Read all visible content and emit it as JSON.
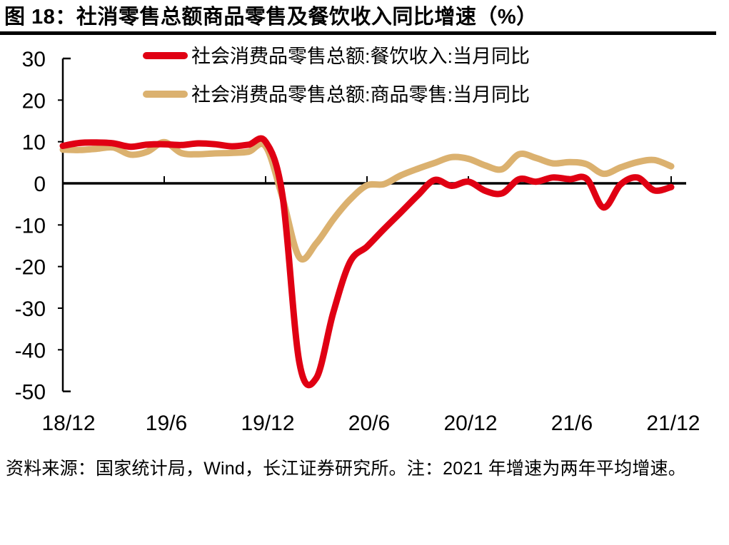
{
  "title": "图 18：社消零售总额商品零售及餐饮收入同比增速（%）",
  "footer": {
    "text": "资料来源：国家统计局，Wind，长江证券研究所。注：2021 年增速为两年平均增速。"
  },
  "colors": {
    "restaurant_series": "#E00013",
    "goods_series": "#DBB16F",
    "axis": "#000000",
    "background": "#FFFFFF"
  },
  "chart_data": {
    "type": "line",
    "title": "社消零售总额商品零售及餐饮收入同比增速（%）",
    "xlabel": "",
    "ylabel": "",
    "ylim": [
      -50,
      30
    ],
    "y_ticks": [
      30,
      20,
      10,
      0,
      -10,
      -20,
      -30,
      -40,
      -50
    ],
    "grid": false,
    "legend_position": "top",
    "x": [
      "2018/12",
      "2019/1",
      "2019/2",
      "2019/3",
      "2019/4",
      "2019/5",
      "2019/6",
      "2019/7",
      "2019/8",
      "2019/9",
      "2019/10",
      "2019/11",
      "2019/12",
      "2020/1",
      "2020/2",
      "2020/3",
      "2020/4",
      "2020/5",
      "2020/6",
      "2020/7",
      "2020/8",
      "2020/9",
      "2020/10",
      "2020/11",
      "2020/12",
      "2021/1",
      "2021/2",
      "2021/3",
      "2021/4",
      "2021/5",
      "2021/6",
      "2021/7",
      "2021/8",
      "2021/9",
      "2021/10",
      "2021/11",
      "2021/12"
    ],
    "x_tick_indices": [
      0,
      6,
      12,
      18,
      24,
      30,
      36
    ],
    "x_tick_labels": [
      "18/12",
      "19/6",
      "19/12",
      "20/6",
      "20/12",
      "21/6",
      "21/12"
    ],
    "series": [
      {
        "name": "社会消费品零售总额:餐饮收入:当月同比",
        "color": "#E00013",
        "values": [
          9.0,
          9.7,
          9.8,
          9.6,
          8.8,
          9.3,
          9.4,
          9.2,
          9.6,
          9.4,
          8.9,
          9.3,
          10.0,
          -3.0,
          -43.1,
          -46.8,
          -31.1,
          -18.9,
          -15.2,
          -11.0,
          -7.0,
          -2.9,
          0.8,
          -0.6,
          0.4,
          -1.8,
          -2.4,
          1.0,
          0.4,
          1.4,
          1.0,
          1.1,
          -5.8,
          -0.3,
          1.4,
          -1.7,
          -0.9
        ]
      },
      {
        "name": "社会消费品零售总额:商品零售:当月同比",
        "color": "#DBB16F",
        "values": [
          8.1,
          8.0,
          8.3,
          8.6,
          6.9,
          7.6,
          9.9,
          7.3,
          7.0,
          7.2,
          7.3,
          7.6,
          8.9,
          -3.5,
          -17.8,
          -14.4,
          -8.7,
          -3.9,
          -0.5,
          -0.2,
          1.9,
          3.5,
          4.9,
          6.3,
          5.9,
          4.3,
          3.4,
          7.0,
          6.1,
          4.8,
          5.1,
          4.6,
          2.3,
          3.8,
          5.1,
          5.6,
          4.1
        ]
      }
    ]
  }
}
